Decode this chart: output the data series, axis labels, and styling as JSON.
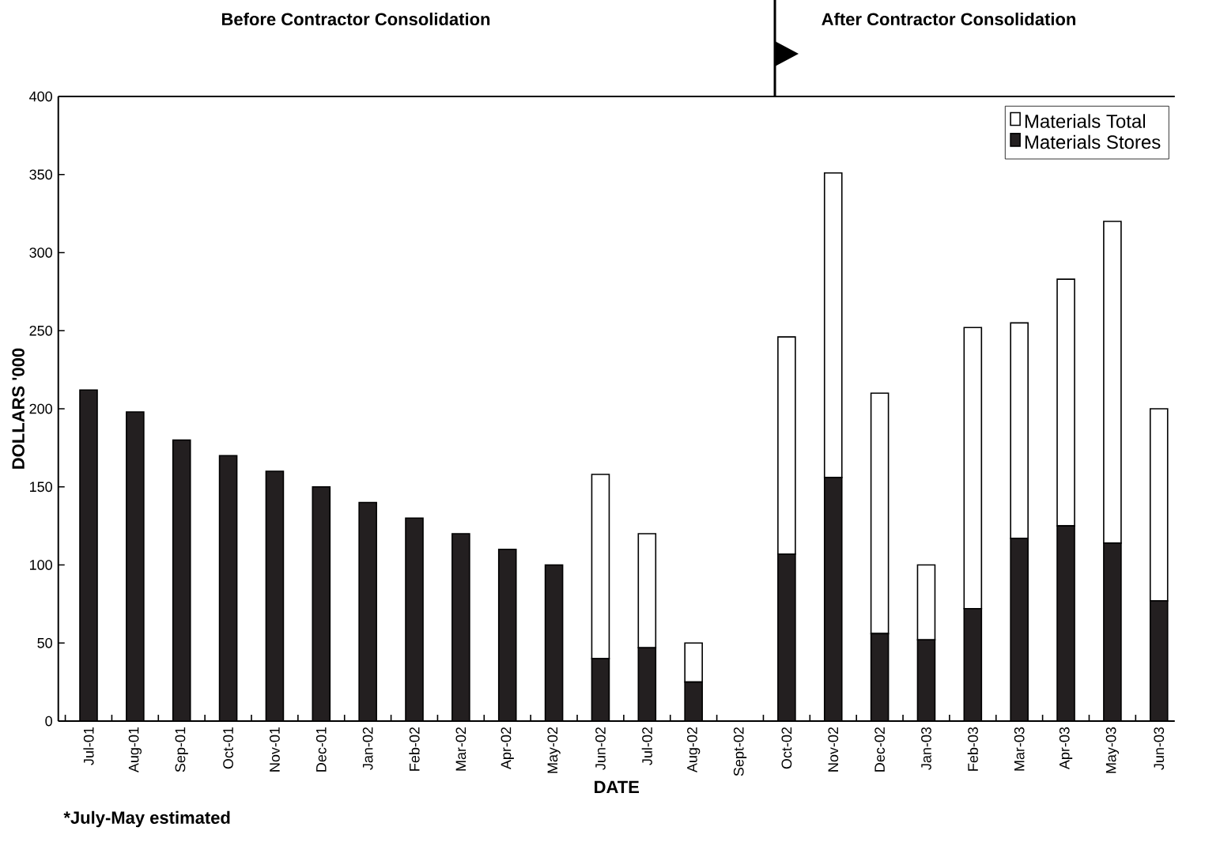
{
  "chart_data": {
    "type": "bar",
    "stacked": true,
    "xlabel": "DATE",
    "ylabel": "DOLLARS '000",
    "categories": [
      "Jul-01",
      "Aug-01",
      "Sep-01",
      "Oct-01",
      "Nov-01",
      "Dec-01",
      "Jan-02",
      "Feb-02",
      "Mar-02",
      "Apr-02",
      "May-02",
      "Jun-02",
      "Jul-02",
      "Aug-02",
      "Sept-02",
      "Oct-02",
      "Nov-02",
      "Dec-02",
      "Jan-03",
      "Feb-03",
      "Mar-03",
      "Apr-03",
      "May-03",
      "Jun-03"
    ],
    "series": [
      {
        "name": "Materials Stores",
        "color": "#231f20",
        "values": [
          212,
          198,
          180,
          170,
          160,
          150,
          140,
          130,
          120,
          110,
          100,
          40,
          47,
          25,
          null,
          107,
          156,
          56,
          52,
          72,
          117,
          125,
          114,
          77
        ]
      },
      {
        "name": "Materials Total",
        "color": "#ffffff",
        "values": [
          0,
          0,
          0,
          0,
          0,
          0,
          0,
          0,
          0,
          0,
          0,
          118,
          73,
          25,
          null,
          139,
          195,
          154,
          48,
          180,
          138,
          158,
          206,
          123
        ]
      }
    ],
    "ylim": [
      0,
      400
    ],
    "yticks": [
      0,
      50,
      100,
      150,
      200,
      250,
      300,
      350,
      400
    ],
    "legend": "top right",
    "grid": false,
    "annotations": [
      "Before Contractor Consolidation",
      "After Contractor Consolidation",
      "*July-May estimated"
    ]
  }
}
